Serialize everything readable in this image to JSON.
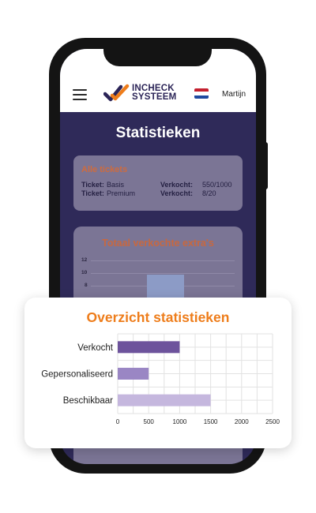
{
  "app": {
    "logo_line1": "INCHECK",
    "logo_line2": "SYSTEEM",
    "user_name": "Martijn",
    "flag": "netherlands-flag"
  },
  "page": {
    "title": "Statistieken"
  },
  "tickets_card": {
    "title": "Alle tickets",
    "rows": [
      {
        "ticket_label": "Ticket:",
        "ticket_value": "Basis",
        "sold_label": "Verkocht:",
        "sold_value": "550/1000"
      },
      {
        "ticket_label": "Ticket:",
        "ticket_value": "Premium",
        "sold_label": "Verkocht:",
        "sold_value": "8/20"
      }
    ]
  },
  "extras_card": {
    "title": "Totaal verkochte extra's",
    "y_ticks": [
      "12",
      "10",
      "8"
    ]
  },
  "overview": {
    "title": "Overzicht statistieken"
  },
  "colors": {
    "accent_orange": "#ee7d1b",
    "screen_bg": "#2f2a59",
    "bar_verkocht": "#6d539c",
    "bar_gepersonaliseerd": "#9a86c4",
    "bar_beschikbaar": "#c5b7de"
  },
  "chart_data": {
    "type": "bar",
    "orientation": "horizontal",
    "title": "Overzicht statistieken",
    "categories": [
      "Verkocht",
      "Gepersonaliseerd",
      "Beschikbaar"
    ],
    "values": [
      1000,
      500,
      1500
    ],
    "xlim": [
      0,
      2500
    ],
    "x_ticks": [
      "0",
      "500",
      "1000",
      "1500",
      "2000",
      "2500"
    ],
    "grid": true,
    "legend": "none"
  }
}
